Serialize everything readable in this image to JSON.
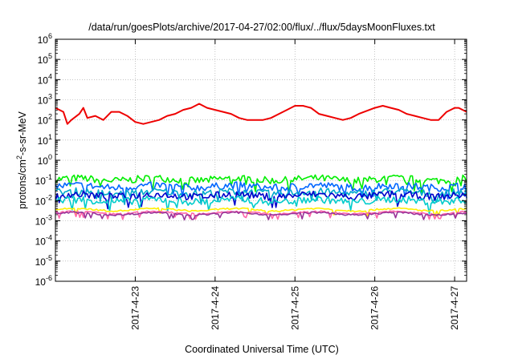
{
  "chart_data": {
    "type": "line",
    "title": "/data/run/goesPlots/archive/2017-04-27/02:00/flux/../flux/5daysMoonFluxes.txt",
    "xlabel": "Coordinated Universal Time (UTC)",
    "ylabel": {
      "prefix": "protons/cm",
      "sup": "2",
      "suffix": "-s-sr-MeV"
    },
    "y_scale": "log",
    "ylim_exp": [
      -6,
      6
    ],
    "y_ticks": [
      {
        "base": "10",
        "exp": "6",
        "value": 6
      },
      {
        "base": "10",
        "exp": "5",
        "value": 5
      },
      {
        "base": "10",
        "exp": "4",
        "value": 4
      },
      {
        "base": "10",
        "exp": "3",
        "value": 3
      },
      {
        "base": "10",
        "exp": "2",
        "value": 2
      },
      {
        "base": "10",
        "exp": "1",
        "value": 1
      },
      {
        "base": "10",
        "exp": "0",
        "value": 0
      },
      {
        "base": "10",
        "exp": "-1",
        "value": -1
      },
      {
        "base": "10",
        "exp": "-2",
        "value": -2
      },
      {
        "base": "10",
        "exp": "-3",
        "value": -3
      },
      {
        "base": "10",
        "exp": "-4",
        "value": -4
      },
      {
        "base": "10",
        "exp": "-5",
        "value": -5
      },
      {
        "base": "10",
        "exp": "-6",
        "value": -6
      }
    ],
    "x_unit": "day",
    "xlim": [
      22.0,
      27.15
    ],
    "x_ticks": [
      {
        "label": "2017-4-23",
        "value": 23
      },
      {
        "label": "2017-4-24",
        "value": 24
      },
      {
        "label": "2017-4-25",
        "value": 25
      },
      {
        "label": "2017-4-26",
        "value": 26
      },
      {
        "label": "2017-4-27",
        "value": 27
      }
    ],
    "grid": true,
    "series": [
      {
        "color": "#ee0000",
        "approx_log10": 2.2,
        "points": [
          [
            22.0,
            2.6
          ],
          [
            22.1,
            2.4
          ],
          [
            22.15,
            1.8
          ],
          [
            22.2,
            2.0
          ],
          [
            22.3,
            2.3
          ],
          [
            22.35,
            2.6
          ],
          [
            22.4,
            2.1
          ],
          [
            22.5,
            2.2
          ],
          [
            22.6,
            2.0
          ],
          [
            22.7,
            2.4
          ],
          [
            22.8,
            2.4
          ],
          [
            22.9,
            2.2
          ],
          [
            23.0,
            1.9
          ],
          [
            23.1,
            1.8
          ],
          [
            23.2,
            1.9
          ],
          [
            23.3,
            2.0
          ],
          [
            23.4,
            2.2
          ],
          [
            23.5,
            2.3
          ],
          [
            23.6,
            2.5
          ],
          [
            23.7,
            2.6
          ],
          [
            23.8,
            2.8
          ],
          [
            23.9,
            2.6
          ],
          [
            24.0,
            2.5
          ],
          [
            24.1,
            2.4
          ],
          [
            24.2,
            2.3
          ],
          [
            24.3,
            2.1
          ],
          [
            24.4,
            2.0
          ],
          [
            24.5,
            2.0
          ],
          [
            24.6,
            2.0
          ],
          [
            24.7,
            2.1
          ],
          [
            24.8,
            2.3
          ],
          [
            24.9,
            2.5
          ],
          [
            25.0,
            2.7
          ],
          [
            25.1,
            2.7
          ],
          [
            25.2,
            2.6
          ],
          [
            25.3,
            2.3
          ],
          [
            25.4,
            2.2
          ],
          [
            25.5,
            2.1
          ],
          [
            25.6,
            2.0
          ],
          [
            25.7,
            2.1
          ],
          [
            25.8,
            2.3
          ],
          [
            26.0,
            2.6
          ],
          [
            26.1,
            2.7
          ],
          [
            26.2,
            2.6
          ],
          [
            26.3,
            2.5
          ],
          [
            26.4,
            2.3
          ],
          [
            26.5,
            2.2
          ],
          [
            26.6,
            2.1
          ],
          [
            26.7,
            2.0
          ],
          [
            26.8,
            2.0
          ],
          [
            26.9,
            2.4
          ],
          [
            27.0,
            2.6
          ],
          [
            27.05,
            2.6
          ],
          [
            27.15,
            2.4
          ]
        ]
      },
      {
        "color": "#00ee00",
        "approx_log10": -0.95,
        "points": []
      },
      {
        "color": "#0066ff",
        "approx_log10": -1.3,
        "points": []
      },
      {
        "color": "#00aacc",
        "approx_log10": -1.6,
        "points": []
      },
      {
        "color": "#0000cc",
        "approx_log10": -1.75,
        "points": []
      },
      {
        "color": "#00cccc",
        "approx_log10": -2.0,
        "points": []
      },
      {
        "color": "#ffee00",
        "approx_log10": -2.45,
        "points": []
      },
      {
        "color": "#ff66aa",
        "approx_log10": -2.6,
        "points": []
      },
      {
        "color": "#993399",
        "approx_log10": -2.65,
        "points": []
      }
    ]
  }
}
